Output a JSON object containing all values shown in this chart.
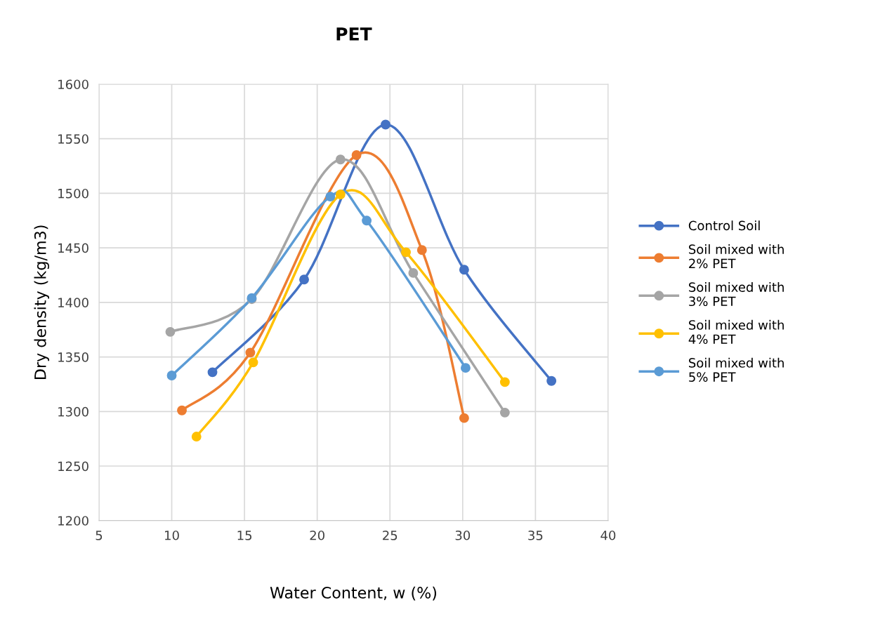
{
  "chart_data": {
    "type": "line",
    "title": "PET",
    "xlabel": "Water Content, w (%)",
    "ylabel": "Dry density (kg/m3)",
    "xlim": [
      5,
      40
    ],
    "xticks": [
      5,
      10,
      15,
      20,
      25,
      30,
      35,
      40
    ],
    "ylim": [
      1200,
      1600
    ],
    "yticks": [
      1200,
      1250,
      1300,
      1350,
      1400,
      1450,
      1500,
      1550,
      1600
    ],
    "grid": true,
    "legend": "right",
    "marker": "circle",
    "line_style": "solid",
    "series": [
      {
        "name": "Control Soil",
        "color": "#4472c4",
        "x": [
          12.8,
          19.1,
          24.7,
          30.1,
          36.1
        ],
        "values": [
          1336,
          1421,
          1563,
          1430,
          1328
        ]
      },
      {
        "name": "Soil mixed with\n2% PET",
        "color": "#ed7d31",
        "x": [
          10.7,
          15.4,
          22.7,
          27.2,
          30.1
        ],
        "values": [
          1301,
          1354,
          1535,
          1448,
          1294
        ]
      },
      {
        "name": "Soil mixed with\n3% PET",
        "color": "#a5a5a5",
        "x": [
          9.9,
          15.5,
          21.6,
          26.6,
          32.9
        ],
        "values": [
          1373,
          1403,
          1531,
          1427,
          1299
        ]
      },
      {
        "name": "Soil mixed with\n4% PET",
        "color": "#ffc000",
        "x": [
          11.7,
          15.6,
          21.6,
          26.1,
          32.9
        ],
        "values": [
          1277,
          1345,
          1499,
          1446,
          1327
        ]
      },
      {
        "name": "Soil mixed with\n5% PET",
        "color": "#5b9bd5",
        "x": [
          10.0,
          15.5,
          20.9,
          23.4,
          30.2
        ],
        "values": [
          1333,
          1404,
          1497,
          1475,
          1340
        ]
      }
    ]
  }
}
